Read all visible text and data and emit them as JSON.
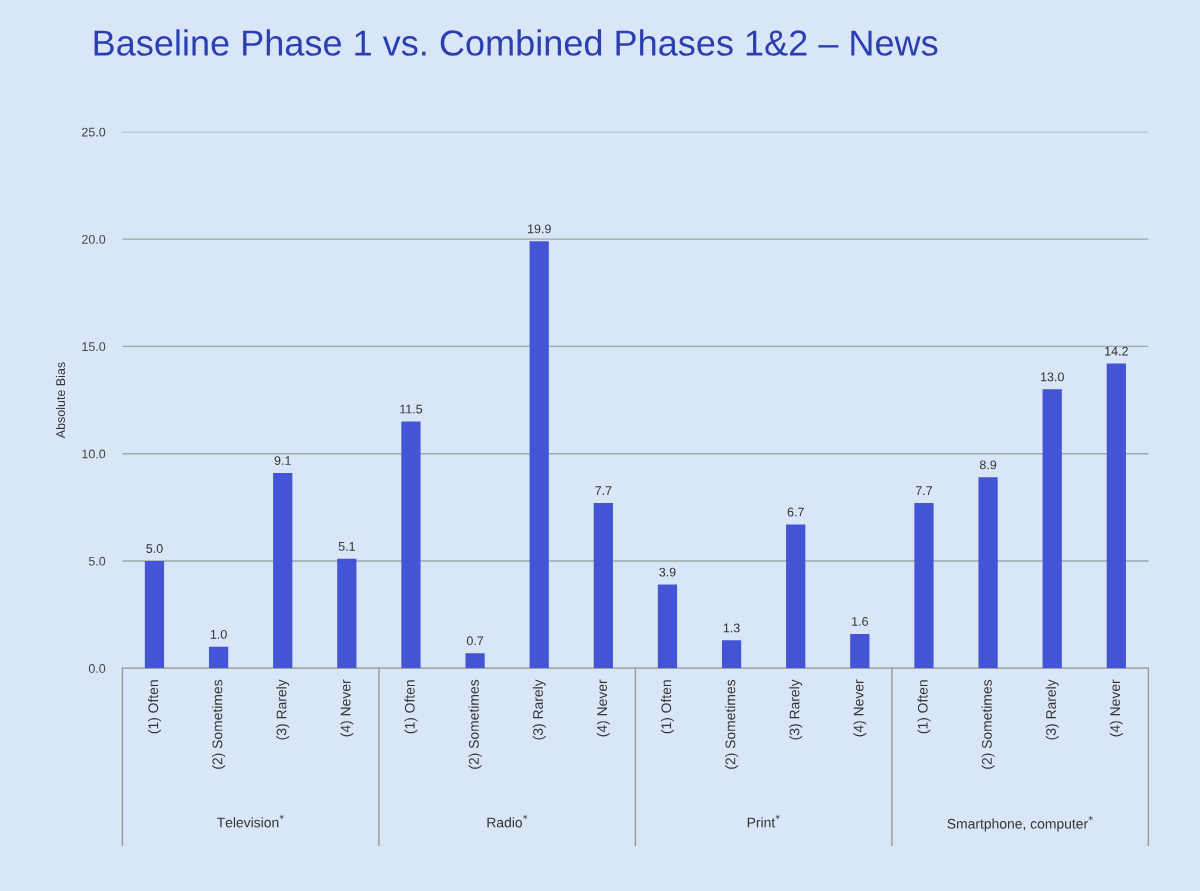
{
  "chart_data": {
    "type": "bar",
    "title": "Baseline Phase 1 vs. Combined Phases 1&2 – News",
    "ylabel": "Absolute Bias",
    "categories": [
      "(1) Often",
      "(2) Sometimes",
      "(3) Rarely",
      "(4) Never",
      "(1) Often",
      "(2) Sometimes",
      "(3) Rarely",
      "(4) Never",
      "(1) Often",
      "(2) Sometimes",
      "(3) Rarely",
      "(4) Never",
      "(1) Often",
      "(2) Sometimes",
      "(3) Rarely",
      "(4) Never"
    ],
    "values": [
      5.0,
      1.0,
      9.1,
      5.1,
      11.5,
      0.7,
      19.9,
      7.7,
      3.9,
      1.3,
      6.7,
      1.6,
      7.7,
      8.9,
      13.0,
      14.2
    ],
    "value_labels": [
      "5.0",
      "1.0",
      "9.1",
      "5.1",
      "11.5",
      "0.7",
      "19.9",
      "7.7",
      "3.9",
      "1.3",
      "6.7",
      "1.6",
      "7.7",
      "8.9",
      "13.0",
      "14.2"
    ],
    "color": "#4355d4",
    "grid": "y",
    "ylim": [
      0,
      25
    ],
    "yticks": [
      {
        "value": 0,
        "label": "0.0"
      },
      {
        "value": 5,
        "label": "5.0"
      },
      {
        "value": 10,
        "label": "10.0"
      },
      {
        "value": 15,
        "label": "15.0"
      },
      {
        "value": 20,
        "label": "20.0"
      },
      {
        "value": 25,
        "label": "25.0"
      }
    ],
    "annotations": [
      "Television$^{*}$",
      "Radio$^{*}$",
      "Print$^{*}$",
      "Smartphone, computer$^{*}$"
    ]
  }
}
